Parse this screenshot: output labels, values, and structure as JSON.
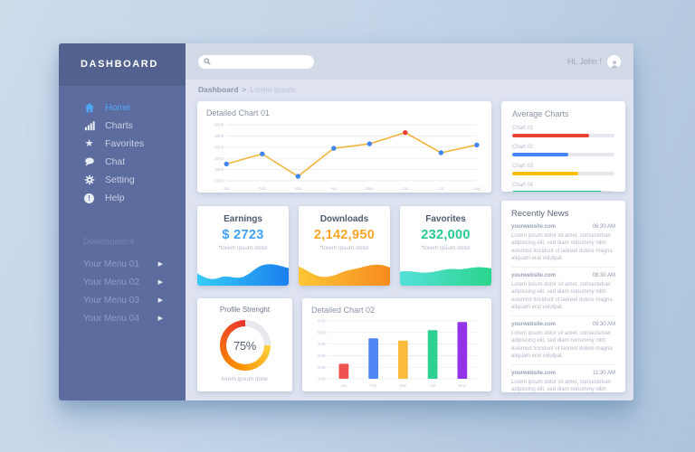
{
  "sidebar": {
    "title": "DASHBOARD",
    "items": [
      {
        "label": "Home",
        "icon": "home-icon",
        "active": true
      },
      {
        "label": "Charts",
        "icon": "bar-chart-icon",
        "active": false
      },
      {
        "label": "Favorites",
        "icon": "star-icon",
        "active": false
      },
      {
        "label": "Chat",
        "icon": "chat-icon",
        "active": false
      },
      {
        "label": "Setting",
        "icon": "gear-icon",
        "active": false
      },
      {
        "label": "Help",
        "icon": "help-icon",
        "active": false
      }
    ],
    "section_label": "Development",
    "submenu": [
      "Your Menu 01",
      "Your Menu 02",
      "Your Menu 03",
      "Your Menu 04"
    ]
  },
  "topbar": {
    "greeting": "Hi, John !",
    "search_placeholder": ""
  },
  "breadcrumb": {
    "root": "Dashboard",
    "separator": ">",
    "current": "Lorem Ipsum"
  },
  "cards": {
    "detailed_chart_01": {
      "title": "Detailed Chart 01"
    },
    "average_charts": {
      "title": "Average Charts"
    },
    "earnings": {
      "title": "Earnings",
      "value": "$ 2723",
      "note": "*lorem ipsum dolor",
      "accent": "#3da2f6",
      "wave": [
        "#35cdf5",
        "#1b7ff0"
      ]
    },
    "downloads": {
      "title": "Downloads",
      "value": "2,142,950",
      "note": "*lorem ipsum dolor",
      "accent": "#f8a62a",
      "wave": [
        "#fdc636",
        "#f68b1f"
      ]
    },
    "favorites": {
      "title": "Favorites",
      "value": "232,000",
      "note": "*lorem ipsum dolor",
      "accent": "#26c98f",
      "wave": [
        "#55e0da",
        "#2bd58b"
      ]
    },
    "recently_news": {
      "title": "Recently News",
      "items": [
        {
          "site": "yourwebsite.com",
          "time": "06:30 AM",
          "body": "Lorem ipsum dolor sit amet, consectetuer adipiscing elit, sed diam nonummy nibh euismod tincidunt ut laoreet dolore magna aliquam erat volutpat."
        },
        {
          "site": "yourwebsite.com",
          "time": "08:30 AM",
          "body": "Lorem ipsum dolor sit amet, consectetuer adipiscing elit, sed diam nonummy nibh euismod tincidunt ut laoreet dolore magna aliquam erat volutpat."
        },
        {
          "site": "yourwebsite.com",
          "time": "09:30 AM",
          "body": "Lorem ipsum dolor sit amet, consectetuer adipiscing elit, sed diam nonummy nibh euismod tincidunt ut laoreet dolore magna aliquam erat volutpat."
        },
        {
          "site": "yourwebsite.com",
          "time": "11:30 AM",
          "body": "Lorem ipsum dolor sit amet, consectetuer adipiscing elit, sed diam nonummy nibh euismod tincidunt ut laoreet dolore magna aliquam erat volutpat."
        }
      ]
    },
    "profile": {
      "title": "Profile Strenght",
      "percent_label": "75%",
      "note": "lorem ipsum dolor"
    },
    "detailed_chart_02": {
      "title": "Detailed Chart 02"
    }
  },
  "chart_data": [
    {
      "id": "detailed_chart_01",
      "type": "line",
      "title": "Detailed Chart 01",
      "x": [
        "Jan",
        "Feb",
        "Mar",
        "Apr",
        "May",
        "Jun",
        "Jul",
        "Aug"
      ],
      "values": [
        2500,
        3400,
        1400,
        3900,
        4300,
        5300,
        3500,
        4200
      ],
      "ylim": [
        1000,
        6000
      ],
      "y_ticks": [
        1000,
        2000,
        3000,
        4000,
        5000,
        6000
      ],
      "grid": true,
      "legend": false,
      "line_color": "#f2b53d",
      "point_color": "#4285f4",
      "highlight_index": 5,
      "highlight_color": "#ea4335"
    },
    {
      "id": "average_charts",
      "type": "bar",
      "orientation": "horizontal",
      "title": "Average Charts",
      "categories": [
        "Chart 01",
        "Chart 02",
        "Chart 03",
        "Chart 04"
      ],
      "values": [
        75,
        55,
        65,
        88
      ],
      "xlim": [
        0,
        100
      ],
      "colors": [
        "#ea4335",
        "#4285f4",
        "#fbbc05",
        "#10c98d"
      ]
    },
    {
      "id": "detailed_chart_02",
      "type": "bar",
      "title": "Detailed Chart 02",
      "categories": [
        "Jan",
        "Feb",
        "Mar",
        "Apr",
        "May"
      ],
      "values": [
        2300,
        4500,
        4300,
        5200,
        5900
      ],
      "ylim": [
        1000,
        6000
      ],
      "y_ticks": [
        1000,
        2000,
        3000,
        4000,
        5000,
        6000
      ],
      "grid": true,
      "colors": [
        "#ef5350",
        "#4f86f7",
        "#fbbc3e",
        "#2ed092",
        "#9334e6"
      ]
    },
    {
      "id": "profile_strength",
      "type": "pie",
      "title": "Profile Strenght",
      "labels": [
        "complete",
        "remaining"
      ],
      "values": [
        75,
        25
      ],
      "center_label": "75%",
      "colors": [
        "#e8352e|#fb8c00|#ffd23e",
        "#e7e9ee"
      ]
    }
  ]
}
